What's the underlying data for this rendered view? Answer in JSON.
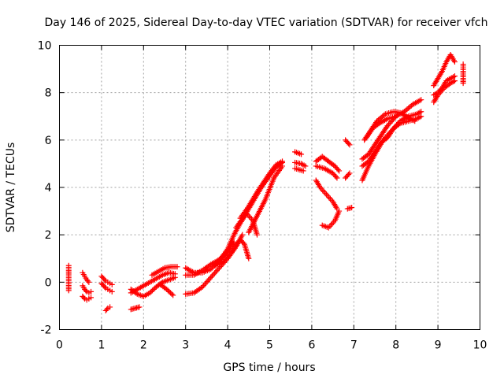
{
  "chart_data": {
    "type": "scatter",
    "title": "Day 146 of 2025, Sidereal Day-to-day VTEC variation (SDTVAR) for receiver vfch",
    "xlabel": "GPS time / hours",
    "ylabel": "SDTVAR / TECUs",
    "xlim": [
      0,
      10
    ],
    "ylim": [
      -2,
      10
    ],
    "xticks": [
      "0",
      "1",
      "2",
      "3",
      "4",
      "5",
      "6",
      "7",
      "8",
      "9",
      "10"
    ],
    "yticks": [
      "-2",
      "0",
      "2",
      "4",
      "6",
      "8",
      "10"
    ],
    "grid": true,
    "marker": "+",
    "series": [
      {
        "name": "SDTVAR",
        "color": "#ff0000",
        "tracks": [
          [
            [
              0.22,
              0.7
            ],
            [
              0.22,
              0.2
            ],
            [
              0.22,
              0.0
            ],
            [
              0.22,
              -0.35
            ]
          ],
          [
            [
              0.55,
              0.4
            ],
            [
              0.6,
              0.25
            ],
            [
              0.65,
              0.1
            ],
            [
              0.7,
              0.0
            ]
          ],
          [
            [
              0.55,
              -0.6
            ],
            [
              0.6,
              -0.7
            ],
            [
              0.65,
              -0.75
            ],
            [
              0.7,
              -0.7
            ],
            [
              0.75,
              -0.65
            ]
          ],
          [
            [
              0.55,
              -0.15
            ],
            [
              0.6,
              -0.3
            ],
            [
              0.65,
              -0.4
            ],
            [
              0.7,
              -0.45
            ],
            [
              0.75,
              -0.4
            ]
          ],
          [
            [
              1.0,
              0.25
            ],
            [
              1.05,
              0.15
            ],
            [
              1.1,
              0.05
            ],
            [
              1.15,
              0.0
            ],
            [
              1.2,
              -0.05
            ],
            [
              1.25,
              -0.1
            ]
          ],
          [
            [
              1.0,
              -0.05
            ],
            [
              1.05,
              -0.15
            ],
            [
              1.1,
              -0.25
            ],
            [
              1.15,
              -0.3
            ],
            [
              1.2,
              -0.35
            ],
            [
              1.25,
              -0.4
            ]
          ],
          [
            [
              1.1,
              -1.2
            ],
            [
              1.15,
              -1.1
            ],
            [
              1.2,
              -1.05
            ]
          ],
          [
            [
              1.7,
              -1.15
            ],
            [
              1.8,
              -1.1
            ],
            [
              1.9,
              -1.05
            ]
          ],
          [
            [
              1.7,
              -0.45
            ],
            [
              1.85,
              -0.3
            ],
            [
              2.0,
              -0.15
            ],
            [
              2.15,
              0.0
            ],
            [
              2.3,
              0.15
            ],
            [
              2.45,
              0.3
            ],
            [
              2.6,
              0.4
            ],
            [
              2.75,
              0.35
            ]
          ],
          [
            [
              1.7,
              -0.3
            ],
            [
              1.85,
              -0.5
            ],
            [
              2.0,
              -0.6
            ],
            [
              2.15,
              -0.45
            ],
            [
              2.3,
              -0.2
            ],
            [
              2.45,
              0.0
            ],
            [
              2.6,
              0.1
            ],
            [
              2.75,
              0.2
            ]
          ],
          [
            [
              2.2,
              0.3
            ],
            [
              2.35,
              0.45
            ],
            [
              2.5,
              0.6
            ],
            [
              2.65,
              0.65
            ],
            [
              2.8,
              0.65
            ]
          ],
          [
            [
              2.4,
              -0.1
            ],
            [
              2.55,
              -0.3
            ],
            [
              2.7,
              -0.55
            ]
          ],
          [
            [
              3.0,
              -0.5
            ],
            [
              3.2,
              -0.45
            ],
            [
              3.4,
              -0.2
            ],
            [
              3.6,
              0.2
            ],
            [
              3.8,
              0.6
            ],
            [
              4.0,
              1.0
            ],
            [
              4.2,
              1.5
            ],
            [
              4.35,
              2.0
            ]
          ],
          [
            [
              3.0,
              0.6
            ],
            [
              3.2,
              0.4
            ],
            [
              3.4,
              0.4
            ],
            [
              3.6,
              0.55
            ],
            [
              3.8,
              0.9
            ],
            [
              4.0,
              1.4
            ],
            [
              4.15,
              2.0
            ],
            [
              4.3,
              2.5
            ],
            [
              4.45,
              2.9
            ],
            [
              4.6,
              2.6
            ],
            [
              4.7,
              2.0
            ]
          ],
          [
            [
              3.0,
              0.3
            ],
            [
              3.2,
              0.3
            ],
            [
              3.4,
              0.5
            ],
            [
              3.6,
              0.75
            ],
            [
              3.8,
              0.95
            ],
            [
              4.0,
              1.3
            ],
            [
              4.15,
              1.7
            ]
          ],
          [
            [
              3.7,
              0.7
            ],
            [
              3.9,
              0.9
            ],
            [
              4.1,
              1.3
            ],
            [
              4.3,
              1.8
            ],
            [
              4.4,
              1.6
            ],
            [
              4.5,
              1.0
            ]
          ],
          [
            [
              4.3,
              2.7
            ],
            [
              4.5,
              3.2
            ],
            [
              4.7,
              3.8
            ],
            [
              4.85,
              4.2
            ],
            [
              5.0,
              4.6
            ],
            [
              5.15,
              4.95
            ],
            [
              5.3,
              5.1
            ]
          ],
          [
            [
              4.2,
              2.3
            ],
            [
              4.4,
              2.8
            ],
            [
              4.6,
              3.4
            ],
            [
              4.8,
              4.0
            ],
            [
              5.0,
              4.5
            ],
            [
              5.15,
              4.85
            ],
            [
              5.3,
              5.05
            ]
          ],
          [
            [
              4.5,
              2.1
            ],
            [
              4.7,
              2.8
            ],
            [
              4.9,
              3.5
            ],
            [
              5.1,
              4.4
            ],
            [
              5.3,
              4.9
            ]
          ],
          [
            [
              5.6,
              5.5
            ],
            [
              5.75,
              5.4
            ]
          ],
          [
            [
              5.6,
              5.05
            ],
            [
              5.75,
              5.0
            ],
            [
              5.85,
              4.9
            ]
          ],
          [
            [
              5.6,
              4.8
            ],
            [
              5.8,
              4.7
            ]
          ],
          [
            [
              6.1,
              5.1
            ],
            [
              6.25,
              5.3
            ],
            [
              6.4,
              5.1
            ],
            [
              6.55,
              4.9
            ],
            [
              6.65,
              4.7
            ]
          ],
          [
            [
              6.1,
              4.9
            ],
            [
              6.3,
              4.8
            ],
            [
              6.5,
              4.6
            ],
            [
              6.6,
              4.4
            ]
          ],
          [
            [
              6.1,
              4.3
            ],
            [
              6.2,
              4.0
            ],
            [
              6.35,
              3.7
            ],
            [
              6.5,
              3.4
            ],
            [
              6.6,
              3.1
            ]
          ],
          [
            [
              6.25,
              2.4
            ],
            [
              6.4,
              2.3
            ],
            [
              6.55,
              2.6
            ],
            [
              6.65,
              3.0
            ]
          ],
          [
            [
              6.8,
              4.4
            ],
            [
              6.9,
              4.6
            ]
          ],
          [
            [
              6.8,
              6.0
            ],
            [
              6.9,
              5.8
            ]
          ],
          [
            [
              6.85,
              3.1
            ],
            [
              6.95,
              3.15
            ]
          ],
          [
            [
              7.2,
              4.3
            ],
            [
              7.35,
              4.9
            ],
            [
              7.5,
              5.4
            ],
            [
              7.7,
              6.0
            ],
            [
              7.9,
              6.4
            ],
            [
              8.1,
              6.8
            ],
            [
              8.3,
              7.0
            ],
            [
              8.5,
              7.1
            ],
            [
              8.6,
              7.2
            ]
          ],
          [
            [
              7.2,
              4.9
            ],
            [
              7.35,
              5.1
            ],
            [
              7.5,
              5.5
            ],
            [
              7.65,
              5.9
            ],
            [
              7.8,
              6.1
            ],
            [
              7.95,
              6.5
            ],
            [
              8.1,
              6.7
            ],
            [
              8.3,
              6.8
            ],
            [
              8.5,
              6.9
            ],
            [
              8.6,
              7.0
            ]
          ],
          [
            [
              7.2,
              5.2
            ],
            [
              7.35,
              5.4
            ],
            [
              7.5,
              5.8
            ],
            [
              7.65,
              6.2
            ],
            [
              7.8,
              6.6
            ],
            [
              8.0,
              7.0
            ],
            [
              8.2,
              7.2
            ],
            [
              8.4,
              7.5
            ],
            [
              8.6,
              7.7
            ]
          ],
          [
            [
              7.25,
              6.0
            ],
            [
              7.4,
              6.4
            ],
            [
              7.55,
              6.8
            ],
            [
              7.75,
              7.1
            ],
            [
              7.95,
              7.2
            ],
            [
              8.1,
              7.15
            ],
            [
              8.25,
              7.0
            ],
            [
              8.45,
              6.8
            ]
          ],
          [
            [
              7.3,
              6.1
            ],
            [
              7.45,
              6.5
            ],
            [
              7.6,
              6.7
            ],
            [
              7.8,
              6.9
            ],
            [
              8.0,
              7.0
            ]
          ],
          [
            [
              8.9,
              8.3
            ],
            [
              9.0,
              8.6
            ],
            [
              9.1,
              8.9
            ],
            [
              9.2,
              9.3
            ],
            [
              9.3,
              9.6
            ],
            [
              9.4,
              9.3
            ]
          ],
          [
            [
              8.9,
              7.9
            ],
            [
              9.0,
              8.0
            ],
            [
              9.1,
              8.2
            ],
            [
              9.2,
              8.5
            ],
            [
              9.3,
              8.6
            ],
            [
              9.4,
              8.7
            ]
          ],
          [
            [
              8.9,
              7.6
            ],
            [
              9.0,
              7.9
            ],
            [
              9.15,
              8.2
            ],
            [
              9.3,
              8.4
            ],
            [
              9.4,
              8.5
            ]
          ],
          [
            [
              9.6,
              9.2
            ],
            [
              9.6,
              8.9
            ],
            [
              9.6,
              8.6
            ],
            [
              9.6,
              8.4
            ]
          ]
        ]
      }
    ]
  }
}
